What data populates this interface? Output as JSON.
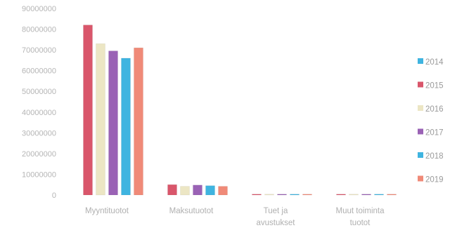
{
  "chart_data": {
    "type": "bar",
    "title": "",
    "xlabel": "",
    "ylabel": "",
    "ylim": [
      0,
      90000000
    ],
    "ytick_labels": [
      "0",
      "10000000",
      "20000000",
      "30000000",
      "40000000",
      "50000000",
      "60000000",
      "70000000",
      "80000000",
      "90000000"
    ],
    "grid": false,
    "legend_position": "right",
    "categories": [
      [
        "Myyntituotot"
      ],
      [
        "Maksutuotot"
      ],
      [
        "Tuet ja",
        "avustukset"
      ],
      [
        "Muut toiminta",
        "tuotot"
      ]
    ],
    "series": [
      {
        "name": "2014",
        "color": "#f2f2f2",
        "values": [
          0,
          0,
          0,
          0
        ]
      },
      {
        "name": "2015",
        "color": "#d9566b",
        "values": [
          82000000,
          5000000,
          300000,
          100000
        ]
      },
      {
        "name": "2016",
        "color": "#ece6c4",
        "values": [
          73000000,
          4200000,
          250000,
          100000
        ]
      },
      {
        "name": "2017",
        "color": "#9a62b5",
        "values": [
          69500000,
          4800000,
          200000,
          100000
        ]
      },
      {
        "name": "2018",
        "color": "#3fb4e0",
        "values": [
          66000000,
          4500000,
          200000,
          100000
        ]
      },
      {
        "name": "2019",
        "color": "#f08a78",
        "values": [
          71000000,
          4200000,
          200000,
          100000
        ]
      }
    ]
  }
}
